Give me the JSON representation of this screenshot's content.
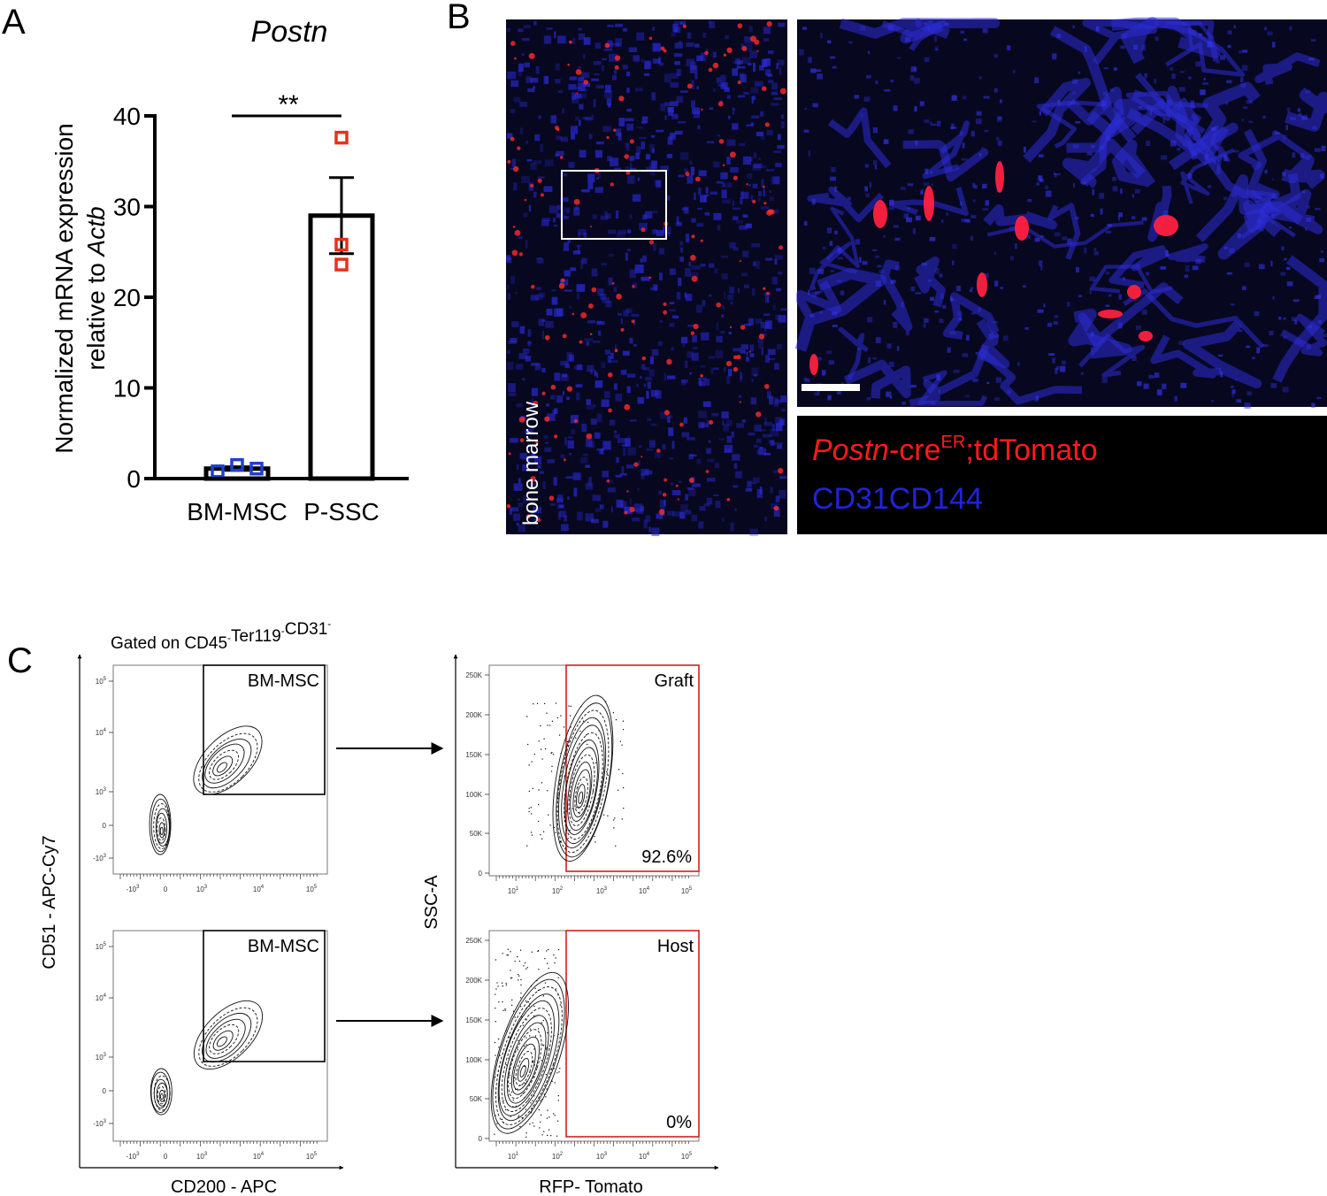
{
  "panel_labels": [
    "A",
    "B",
    "C"
  ],
  "chart_data": {
    "type": "bar",
    "title": "Postn",
    "ylabel": [
      "Normalized mRNA expression",
      "relative to ",
      "Actb"
    ],
    "categories": [
      "BM-MSC",
      "P-SSC"
    ],
    "values": [
      1.1,
      29
    ],
    "errors": [
      0.2,
      4.2
    ],
    "points": [
      [
        0.8,
        1.5,
        1.1
      ],
      [
        37.6,
        25.8,
        23.6
      ]
    ],
    "point_colors": [
      "#1f3fd0",
      "#e8301c"
    ],
    "color": "#ffffff",
    "edge_color": "#000000",
    "ylim": [
      0,
      40
    ],
    "yticks": [
      0,
      10,
      20,
      30,
      40
    ],
    "significance": "**"
  },
  "panel_b": {
    "region_label": "bone marrow",
    "legend": {
      "line1": {
        "italic": "Postn",
        "text": "-cre",
        "sup": "ER",
        "rest": ";tdTomato"
      },
      "line2": "CD31CD144"
    }
  },
  "panel_c": {
    "gating": [
      [
        "Gated on CD45",
        "-"
      ],
      [
        "Ter119",
        "-"
      ],
      [
        "CD31",
        "-"
      ]
    ],
    "left": {
      "x_label": "CD200 - APC",
      "y_label": "CD51 - APC-Cy7",
      "x_ticks": [
        [
          "-10",
          "3"
        ],
        [
          "0"
        ],
        [
          "10",
          "3"
        ],
        [
          "10",
          "4"
        ],
        [
          "10",
          "5"
        ]
      ],
      "y_ticks": [
        [
          "10",
          "5"
        ],
        [
          "10",
          "4"
        ],
        [
          "10",
          "3"
        ],
        [
          "0"
        ],
        [
          "-10",
          "3"
        ]
      ],
      "plots": [
        {
          "gate": "BM-MSC"
        },
        {
          "gate": "BM-MSC"
        }
      ]
    },
    "right": {
      "x_label": "RFP- Tomato",
      "y_label": "SSC-A",
      "x_ticks": [
        [
          "10",
          "1"
        ],
        [
          "10",
          "2"
        ],
        [
          "10",
          "3"
        ],
        [
          "10",
          "4"
        ],
        [
          "10",
          "5"
        ]
      ],
      "y_ticks": [
        [
          "250K"
        ],
        [
          "200K"
        ],
        [
          "150K"
        ],
        [
          "100K"
        ],
        [
          "50K"
        ],
        [
          "0"
        ]
      ],
      "plots": [
        {
          "gate": "Graft",
          "percent": "92.6%"
        },
        {
          "gate": "Host",
          "percent": "0%"
        }
      ]
    }
  }
}
